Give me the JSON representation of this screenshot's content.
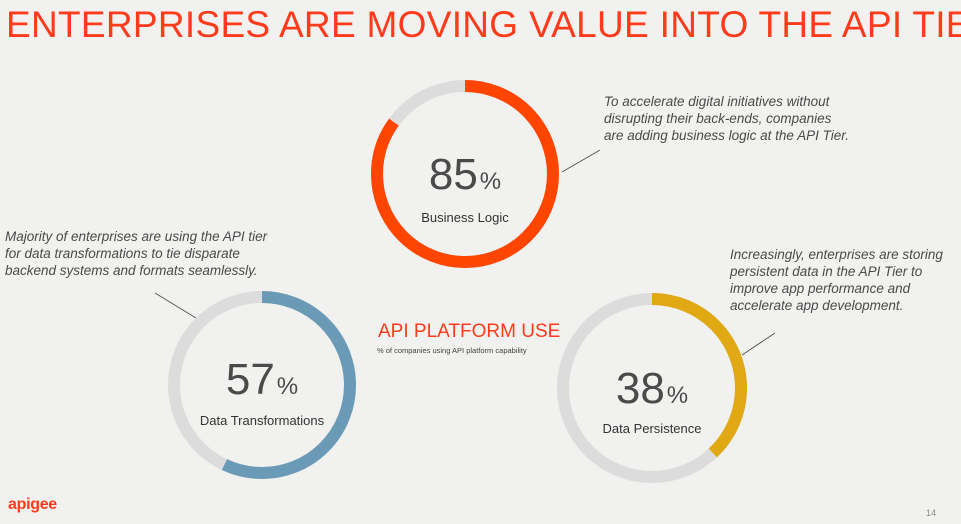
{
  "title": "ENTERPRISES ARE MOVING VALUE INTO THE API TIER",
  "platform": {
    "title": "API PLATFORM USE",
    "subtitle": "% of companies using API platform capability"
  },
  "notes": {
    "business_logic": "To accelerate digital initiatives without disrupting their back-ends, companies are adding business logic at the API Tier.",
    "data_transformations": "Majority of enterprises are using the API tier for data transformations to tie disparate backend systems and formats seamlessly.",
    "data_persistence": "Increasingly, enterprises are storing persistent data in the API Tier to improve app performance and accelerate app development."
  },
  "logo": "apigee",
  "page_number": "14",
  "colors": {
    "accent": "#ff3b1c",
    "track": "#dcdcdc",
    "business_logic": "#ff4500",
    "data_transformations": "#6b9ab7",
    "data_persistence": "#e0a812"
  },
  "chart_data": [
    {
      "type": "pie",
      "title": "Business Logic",
      "values": [
        85
      ],
      "unit": "%",
      "display_value": "85",
      "display_unit": "%"
    },
    {
      "type": "pie",
      "title": "Data Transformations",
      "values": [
        57
      ],
      "unit": "%",
      "display_value": "57",
      "display_unit": "%"
    },
    {
      "type": "pie",
      "title": "Data Persistence",
      "values": [
        38
      ],
      "unit": "%",
      "display_value": "38",
      "display_unit": "%"
    }
  ]
}
